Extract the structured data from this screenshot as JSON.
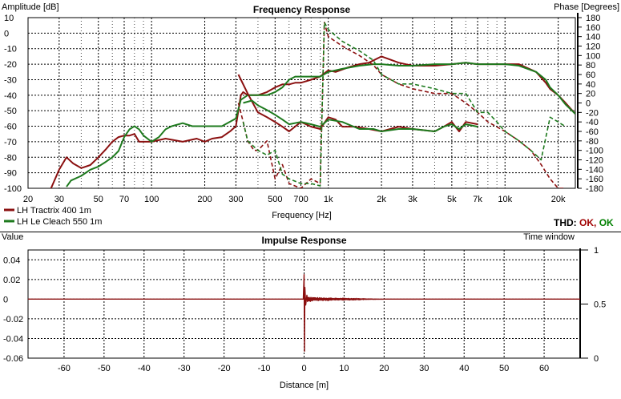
{
  "colors": {
    "tractrix": "#8B1010",
    "lecleach": "#1E7A1E",
    "ok_red": "#A00000",
    "ok_green": "#008000"
  },
  "freq_panel": {
    "title": "Frequency Response",
    "ylabel_left": "Amplitude [dB]",
    "ylabel_right": "Phase [Degrees]",
    "xlabel": "Frequency [Hz]",
    "y_ticks": [
      "10",
      "0",
      "-10",
      "-20",
      "-30",
      "-40",
      "-50",
      "-60",
      "-70",
      "-80",
      "-90",
      "-100"
    ],
    "phase_ticks": [
      "180",
      "160",
      "140",
      "120",
      "100",
      "80",
      "60",
      "40",
      "20",
      "0",
      "-20",
      "-40",
      "-60",
      "-80",
      "-100",
      "-120",
      "-140",
      "-160",
      "-180"
    ],
    "x_ticks": [
      "20",
      "30",
      "50",
      "70",
      "100",
      "200",
      "300",
      "500",
      "700",
      "1k",
      "2k",
      "3k",
      "5k",
      "7k",
      "10k",
      "20k"
    ],
    "legend": [
      "LH Tractrix 400 1m",
      "LH Le Cleach 550 1m"
    ],
    "thd_label": "THD:",
    "thd_ok1": "OK,",
    "thd_ok2": "OK"
  },
  "impulse_panel": {
    "title": "Impulse Response",
    "ylabel": "Value",
    "right_label": "Time window",
    "xlabel": "Distance [m]",
    "y_ticks": [
      "0.04",
      "0.02",
      "0",
      "-0.02",
      "-0.04",
      "-0.06"
    ],
    "right_ticks": [
      "1",
      "0.5",
      "0"
    ],
    "x_ticks": [
      "-60",
      "-50",
      "-40",
      "-30",
      "-20",
      "-10",
      "0",
      "10",
      "20",
      "30",
      "40",
      "50",
      "60"
    ]
  },
  "chart_data": [
    {
      "type": "line",
      "title": "Frequency Response",
      "xlabel": "Frequency [Hz]",
      "ylabel": "Amplitude [dB]",
      "y2label": "Phase [Degrees]",
      "xscale": "log",
      "xlim": [
        20,
        25000
      ],
      "ylim": [
        -100,
        10
      ],
      "y2lim": [
        -180,
        180
      ],
      "grid": true,
      "legend": "bottom-left",
      "series": [
        {
          "name": "LH Tractrix 400 1m",
          "kind": "amplitude",
          "style": "solid",
          "x": [
            27,
            30,
            33,
            36,
            40,
            45,
            50,
            55,
            60,
            65,
            70,
            75,
            80,
            85,
            90,
            100,
            120,
            150,
            180,
            200,
            220,
            250,
            280,
            300,
            320,
            330,
            350,
            380,
            400,
            450,
            500,
            550,
            600,
            650,
            700,
            800,
            900,
            1000,
            1100,
            1300,
            1500,
            1700,
            2000,
            2500,
            3000,
            4000,
            5000,
            6000,
            7000,
            8000,
            10000,
            12000,
            15000,
            17000,
            18000,
            20000,
            22000,
            25000
          ],
          "y": [
            -100,
            -88,
            -80,
            -84,
            -87,
            -85,
            -80,
            -75,
            -70,
            -67,
            -66,
            -66,
            -65,
            -70,
            -70,
            -70,
            -68,
            -70,
            -68,
            -70,
            -68,
            -67,
            -63,
            -60,
            -40,
            -38,
            -40,
            -40,
            -40,
            -38,
            -35,
            -33,
            -33,
            -32,
            -32,
            -30,
            -28,
            -24,
            -25,
            -22,
            -20,
            -19,
            -15,
            -19,
            -21,
            -21,
            -20,
            -19,
            -20,
            -20,
            -20,
            -20,
            -25,
            -32,
            -36,
            -40,
            -45,
            -52
          ]
        },
        {
          "name": "LH Le Cleach 550 1m",
          "kind": "amplitude",
          "style": "solid",
          "x": [
            33,
            35,
            40,
            45,
            50,
            55,
            60,
            65,
            70,
            75,
            80,
            85,
            90,
            100,
            110,
            120,
            130,
            150,
            170,
            200,
            250,
            300,
            320,
            350,
            400,
            450,
            500,
            550,
            600,
            650,
            700,
            800,
            900,
            1000,
            1200,
            1500,
            1800,
            2000,
            2500,
            3000,
            4000,
            5000,
            6000,
            7000,
            8000,
            10000,
            12000,
            15000,
            17000,
            18000,
            20000,
            22000,
            25000
          ],
          "y": [
            -99,
            -95,
            -92,
            -88,
            -86,
            -83,
            -80,
            -76,
            -67,
            -62,
            -60,
            -62,
            -66,
            -70,
            -67,
            -62,
            -60,
            -58,
            -60,
            -60,
            -60,
            -55,
            -43,
            -40,
            -40,
            -40,
            -38,
            -35,
            -30,
            -28,
            -28,
            -28,
            -28,
            -25,
            -23,
            -21,
            -20,
            -20,
            -21,
            -21,
            -20,
            -20,
            -19,
            -20,
            -20,
            -20,
            -21,
            -25,
            -30,
            -35,
            -40,
            -46,
            -52
          ]
        },
        {
          "name": "LH Tractrix 400 1m",
          "kind": "phase",
          "style": "solid",
          "x": [
            310,
            350,
            400,
            450,
            500,
            550,
            600,
            700,
            800,
            900,
            1000,
            1100,
            1200,
            1400,
            1700,
            2000,
            2500,
            3000,
            4000,
            4500,
            5000,
            5500,
            6000,
            7000
          ],
          "y": [
            60,
            20,
            -20,
            -30,
            -40,
            -50,
            -60,
            -40,
            -50,
            -55,
            -30,
            -35,
            -50,
            -50,
            -55,
            -60,
            -50,
            -55,
            -60,
            -50,
            -40,
            -60,
            -40,
            -45
          ]
        },
        {
          "name": "LH Le Cleach 550 1m",
          "kind": "phase",
          "style": "solid",
          "x": [
            330,
            370,
            400,
            450,
            500,
            550,
            600,
            700,
            800,
            900,
            1000,
            1200,
            1500,
            1800,
            2000,
            2500,
            3000,
            4000,
            4500,
            5000,
            5500,
            6000,
            7000
          ],
          "y": [
            0,
            5,
            -5,
            -15,
            -25,
            -35,
            -45,
            -40,
            -45,
            -50,
            -35,
            -40,
            -55,
            -55,
            -60,
            -55,
            -55,
            -60,
            -50,
            -45,
            -55,
            -45,
            -50
          ]
        },
        {
          "name": "LH Tractrix 400 1m",
          "kind": "phase",
          "style": "dashed",
          "x": [
            310,
            330,
            350,
            380,
            400,
            450,
            500,
            550,
            600,
            700,
            800,
            900,
            950,
            1000,
            1200,
            1500,
            1800,
            2000,
            2500,
            3000,
            4000,
            5000,
            6000,
            7000,
            8000,
            10000,
            12000,
            14000,
            16000,
            18000,
            20000,
            22000
          ],
          "y": [
            0,
            -40,
            -80,
            -100,
            -100,
            -80,
            -160,
            -130,
            -170,
            -180,
            -160,
            -170,
            170,
            140,
            120,
            100,
            80,
            60,
            40,
            30,
            20,
            20,
            0,
            -20,
            -40,
            -60,
            -80,
            -100,
            -130,
            -160,
            -180,
            -180
          ]
        },
        {
          "name": "LH Le Cleach 550 1m",
          "kind": "phase",
          "style": "dashed",
          "x": [
            330,
            350,
            400,
            450,
            500,
            550,
            600,
            700,
            800,
            900,
            950,
            1000,
            1200,
            1500,
            1800,
            2000,
            2500,
            3000,
            4000,
            5000,
            6000,
            7000,
            8000,
            9000,
            10000,
            12000,
            14000,
            16000,
            18000,
            20000,
            22000
          ],
          "y": [
            -40,
            -80,
            -100,
            -110,
            -100,
            -150,
            -160,
            -170,
            -170,
            -175,
            170,
            155,
            130,
            110,
            90,
            60,
            40,
            40,
            30,
            20,
            20,
            -20,
            -20,
            -40,
            -60,
            -80,
            -100,
            -120,
            -30,
            -40,
            -50
          ]
        }
      ]
    },
    {
      "type": "line",
      "title": "Impulse Response",
      "xlabel": "Distance [m]",
      "ylabel": "Value",
      "y2label": "Time window",
      "xlim": [
        -69,
        69
      ],
      "ylim": [
        -0.06,
        0.05
      ],
      "y2lim": [
        0,
        1
      ],
      "grid": true,
      "series": [
        {
          "name": "LH Tractrix 400 1m",
          "x": [
            -69,
            -0.2,
            0,
            0.1,
            0.2,
            0.4,
            0.7,
            1,
            2,
            4,
            6,
            8,
            10,
            13,
            16,
            20,
            25,
            69
          ],
          "y": [
            0,
            0,
            0.025,
            -0.053,
            0.012,
            -0.006,
            0.004,
            -0.003,
            0.002,
            -0.0015,
            0.0015,
            -0.001,
            0.001,
            -0.0008,
            0.0004,
            0,
            0,
            0
          ]
        }
      ]
    }
  ]
}
